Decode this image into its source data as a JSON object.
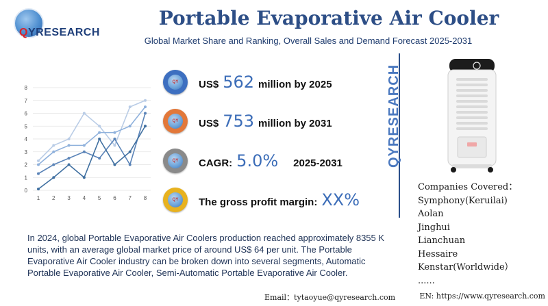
{
  "header": {
    "logo_q": "Q",
    "logo_rest": "YRESEARCH",
    "title": "Portable Evaporative Air Cooler",
    "subtitle": "Global Market Share and Ranking, Overall Sales and Demand Forecast 2025-2031"
  },
  "chart_data": {
    "type": "line",
    "x": [
      1,
      2,
      3,
      4,
      5,
      6,
      7,
      8
    ],
    "ylim": [
      0,
      8
    ],
    "yticks": [
      0,
      1,
      2,
      3,
      4,
      5,
      6,
      7,
      8
    ],
    "grid": true,
    "series": [
      {
        "values": [
          2.3,
          3.5,
          4.0,
          6.0,
          5.0,
          3.5,
          6.5,
          7.0
        ],
        "color": "#b9cce6"
      },
      {
        "values": [
          2.0,
          3.0,
          3.5,
          3.5,
          4.5,
          4.5,
          5.0,
          6.5
        ],
        "color": "#8fb1dc"
      },
      {
        "values": [
          1.3,
          2.0,
          2.5,
          3.0,
          2.5,
          4.0,
          2.0,
          6.0
        ],
        "color": "#5b84b8"
      },
      {
        "values": [
          0.1,
          1.0,
          2.0,
          1.0,
          4.0,
          2.0,
          3.0,
          5.0
        ],
        "color": "#3f6fa0"
      }
    ]
  },
  "metrics": [
    {
      "prefix": "US$",
      "value": "562",
      "suffix": "million by 2025",
      "icon_color": "#3d6fc0",
      "icon": "globe-icon"
    },
    {
      "prefix": "US$",
      "value": "753",
      "suffix": "million by 2031",
      "icon_color": "#e2783a",
      "icon": "globe-icon"
    },
    {
      "prefix": "CAGR:",
      "value": "5.0%",
      "suffix": "2025-2031",
      "icon_color": "#8a8a8a",
      "icon": "globe-icon"
    },
    {
      "prefix": "The gross profit margin:",
      "value": "XX%",
      "suffix": "",
      "icon_color": "#e8b21f",
      "icon": "globe-icon"
    }
  ],
  "side": {
    "brand": "QYRESEARCH",
    "companies_title": "Companies Covered：",
    "companies": [
      "Symphony(Keruilai)",
      "Aolan",
      "Jinghui",
      "Lianchuan",
      "Hessaire",
      "Kenstar(Worldwide）",
      "......"
    ]
  },
  "description": "In 2024, global Portable Evaporative Air Coolers production reached approximately 8355 K units, with an average global market price of around US$ 64 per unit. The Portable Evaporative Air Cooler industry can be broken down into several segments, Automatic Portable Evaporative Air Cooler, Semi-Automatic Portable Evaporative Air Cooler.",
  "footer": {
    "email": "Email：tytaoyue@qyresearch.com",
    "website": "EN: https://www.qyresearch.com"
  }
}
